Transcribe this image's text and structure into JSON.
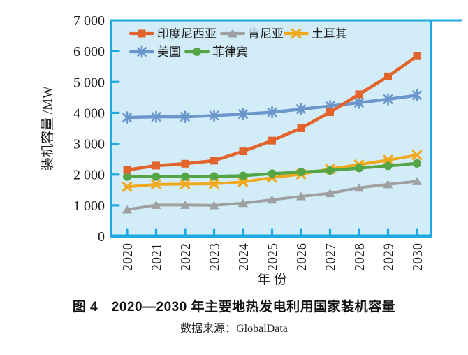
{
  "caption": {
    "title": "图 4　2020—2030 年主要地热发电利用国家装机容量",
    "source": "数据来源：GlobalData"
  },
  "colors": {
    "axis": "#1FA9E2",
    "plot_bg": "#D2ECF8",
    "text": "#1B1B1B"
  },
  "chart_data": {
    "type": "line",
    "title": "2020—2030 年主要地热发电利用国家装机容量",
    "xlabel": "年 份",
    "ylabel": "装机容量 /MW",
    "ylim": [
      0,
      7000
    ],
    "grid": false,
    "legend_position": "inside-top-left, two rows",
    "ytick_values": [
      0,
      1000,
      2000,
      3000,
      4000,
      5000,
      6000,
      7000
    ],
    "ytick_labels": [
      "0",
      "1 000",
      "2 000",
      "3 000",
      "4 000",
      "5 000",
      "6 000",
      "7 000"
    ],
    "categories": [
      "2020",
      "2021",
      "2022",
      "2023",
      "2024",
      "2025",
      "2026",
      "2027",
      "2028",
      "2029",
      "2030"
    ],
    "series": [
      {
        "name": "印度尼西亚",
        "color": "#E2632C",
        "marker": "square",
        "values": [
          2150,
          2290,
          2350,
          2450,
          2750,
          3100,
          3500,
          4020,
          4600,
          5180,
          5840
        ]
      },
      {
        "name": "肯尼亚",
        "color": "#9FA0A0",
        "marker": "triangle",
        "values": [
          860,
          1010,
          1010,
          1000,
          1070,
          1180,
          1290,
          1390,
          1570,
          1680,
          1780
        ]
      },
      {
        "name": "土耳其",
        "color": "#F2A81D",
        "marker": "x",
        "values": [
          1600,
          1680,
          1690,
          1700,
          1760,
          1900,
          2010,
          2180,
          2320,
          2470,
          2630
        ]
      },
      {
        "name": "美国",
        "color": "#6A96CB",
        "marker": "asterisk",
        "values": [
          3850,
          3870,
          3870,
          3910,
          3960,
          4020,
          4120,
          4220,
          4330,
          4440,
          4570
        ]
      },
      {
        "name": "菲律宾",
        "color": "#54A546",
        "marker": "circle",
        "values": [
          1930,
          1930,
          1930,
          1940,
          1960,
          2030,
          2080,
          2130,
          2210,
          2280,
          2360
        ]
      }
    ]
  }
}
